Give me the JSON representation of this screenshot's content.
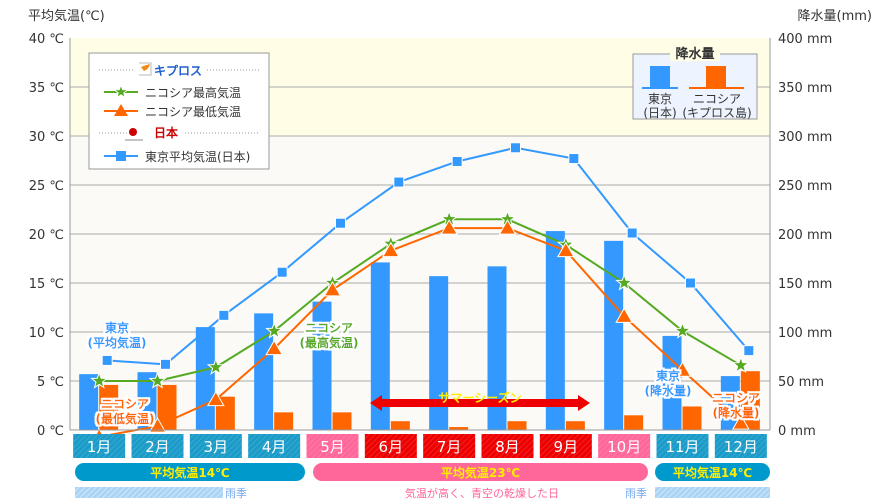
{
  "chart_data": {
    "type": "bar+line",
    "ylabel_left": "平均気温(℃)",
    "ylabel_right": "降水量(mm)",
    "ylim_left": [
      0,
      40
    ],
    "ylim_right": [
      0,
      400
    ],
    "yticks_left": [
      "0 ℃",
      "5 ℃",
      "10 ℃",
      "15 ℃",
      "20 ℃",
      "25 ℃",
      "30 ℃",
      "35 ℃",
      "40 ℃"
    ],
    "yticks_right": [
      "0 mm",
      "50 mm",
      "100 mm",
      "150 mm",
      "200 mm",
      "250 mm",
      "300 mm",
      "350 mm",
      "400 mm"
    ],
    "grid": true,
    "categories": [
      "1月",
      "2月",
      "3月",
      "4月",
      "5月",
      "6月",
      "7月",
      "8月",
      "9月",
      "10月",
      "11月",
      "12月"
    ],
    "month_colors": [
      "#1a9bc8",
      "#1a9bc8",
      "#1a9bc8",
      "#1a9bc8",
      "#ff6699",
      "#ee0000",
      "#ee0000",
      "#ee0000",
      "#ee0000",
      "#ff6699",
      "#1a9bc8",
      "#1a9bc8"
    ],
    "bar_series": [
      {
        "name": "東京(日本)",
        "axis": "right",
        "color": "#3399ff",
        "values": [
          57,
          59,
          105,
          119,
          131,
          171,
          157,
          167,
          203,
          193,
          96,
          55
        ]
      },
      {
        "name": "ニコシア(キプロス島)",
        "axis": "right",
        "color": "#ff6600",
        "values": [
          46,
          46,
          34,
          18,
          18,
          9,
          3,
          9,
          9,
          15,
          24,
          60
        ]
      }
    ],
    "line_series": [
      {
        "name": "東京平均気温(日本)",
        "marker": "square",
        "color": "#3399ff",
        "values": [
          7.1,
          6.7,
          11.7,
          16.1,
          21.1,
          25.3,
          27.4,
          28.8,
          27.7,
          20.1,
          15.0,
          8.1
        ]
      },
      {
        "name": "ニコシア最高気温",
        "marker": "star",
        "color": "#55aa22",
        "values": [
          5.0,
          5.0,
          6.4,
          10.1,
          15.0,
          19.0,
          21.5,
          21.5,
          18.9,
          15.0,
          10.1,
          6.6
        ]
      },
      {
        "name": "ニコシア最低気温",
        "marker": "triangle",
        "color": "#ff6600",
        "values": [
          -0.7,
          0.4,
          3.1,
          8.3,
          14.3,
          18.3,
          20.6,
          20.6,
          18.3,
          11.6,
          6.1,
          0.7
        ]
      }
    ],
    "legend": {
      "placement": "top-left",
      "group_cyprus": "キプロス",
      "group_japan": "日本",
      "precip_title": "降水量",
      "precip_tokyo": [
        "東京",
        "(日本)"
      ],
      "precip_nicosia": [
        "ニコシア",
        "(キプロス島)"
      ]
    },
    "annotations": {
      "tokyo_avg": [
        "東京",
        "(平均気温)"
      ],
      "nicosia_min": [
        "ニコシア",
        "(最低気温)"
      ],
      "nicosia_max": [
        "ニコシア",
        "(最高気温)"
      ],
      "tokyo_precip": [
        "東京",
        "(降水量)"
      ],
      "nicosia_precip": [
        "ニコシア",
        "(降水量)"
      ],
      "summer": "サマーシーズン"
    },
    "bands": {
      "winter1": "平均気温14℃",
      "summer": "平均気温23℃",
      "winter2": "平均気温14℃",
      "rainy1": "雨季",
      "dry": "気温が高く、青空の乾燥した日",
      "rainy2": "雨季"
    }
  }
}
